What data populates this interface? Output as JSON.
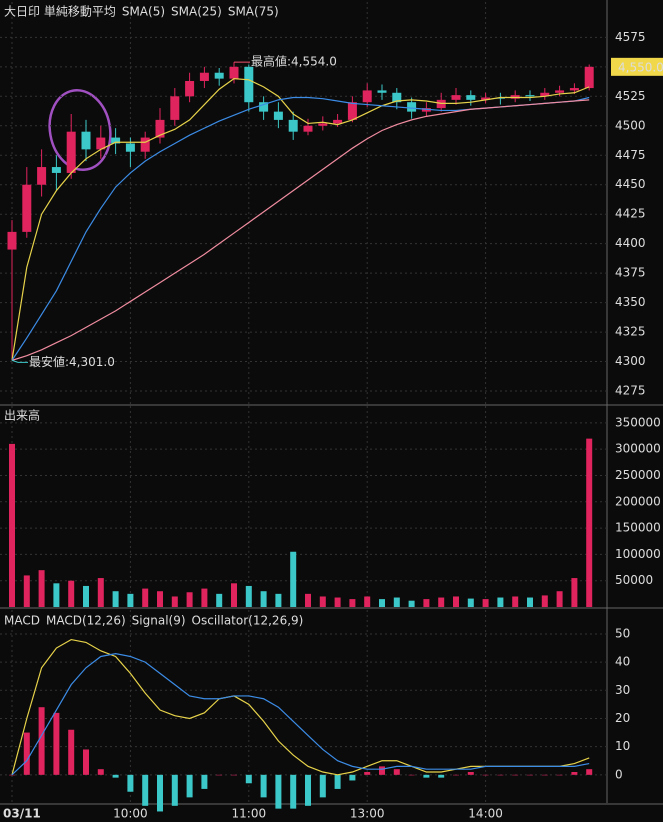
{
  "chart_data": [
    {
      "type": "candlestick",
      "title": "大日印 単純移動平均",
      "grid": true,
      "categories": [
        "03/11",
        null,
        null,
        null,
        null,
        null,
        null,
        null,
        "10:00",
        null,
        null,
        null,
        null,
        null,
        null,
        null,
        "11:00",
        null,
        null,
        null,
        null,
        null,
        null,
        null,
        "13:00",
        null,
        null,
        null,
        null,
        null,
        null,
        null,
        "14:00",
        null,
        null,
        null,
        null,
        null,
        null,
        null
      ],
      "open": [
        4395,
        4410,
        4450,
        4465,
        4460,
        4495,
        4480,
        4490,
        4485,
        4478,
        4490,
        4505,
        4525,
        4538,
        4545,
        4540,
        4550,
        4520,
        4512,
        4505,
        4495,
        4500,
        4502,
        4505,
        4520,
        4530,
        4528,
        4520,
        4512,
        4515,
        4522,
        4526,
        4522,
        4524,
        4523,
        4526,
        4525,
        4528,
        4530,
        4532
      ],
      "high": [
        4420,
        4465,
        4480,
        4475,
        4510,
        4505,
        4500,
        4498,
        4490,
        4495,
        4515,
        4532,
        4545,
        4550,
        4549,
        4554,
        4552,
        4525,
        4520,
        4512,
        4506,
        4508,
        4510,
        4525,
        4536,
        4535,
        4532,
        4524,
        4520,
        4528,
        4532,
        4530,
        4528,
        4528,
        4530,
        4530,
        4532,
        4534,
        4536,
        4552
      ],
      "low": [
        4301,
        4405,
        4440,
        4445,
        4455,
        4470,
        4472,
        4476,
        4465,
        4472,
        4485,
        4500,
        4520,
        4532,
        4534,
        4536,
        4512,
        4505,
        4498,
        4488,
        4492,
        4496,
        4499,
        4503,
        4516,
        4522,
        4514,
        4506,
        4508,
        4512,
        4518,
        4517,
        4519,
        4518,
        4520,
        4521,
        4522,
        4525,
        4527,
        4530
      ],
      "close": [
        4410,
        4450,
        4465,
        4460,
        4495,
        4480,
        4490,
        4485,
        4478,
        4490,
        4505,
        4525,
        4538,
        4545,
        4540,
        4550,
        4520,
        4512,
        4505,
        4495,
        4500,
        4502,
        4505,
        4520,
        4530,
        4528,
        4520,
        4512,
        4515,
        4522,
        4526,
        4522,
        4524,
        4523,
        4526,
        4525,
        4528,
        4530,
        4532,
        4550
      ],
      "up_color": "#e0245e",
      "down_color": "#3cc8c8",
      "series": [
        {
          "name": "SMA(5)",
          "color": "#e6d24a",
          "values": [
            4301,
            4380,
            4425,
            4445,
            4460,
            4472,
            4480,
            4486,
            4486,
            4486,
            4492,
            4497,
            4505,
            4518,
            4531,
            4540,
            4539,
            4533,
            4525,
            4510,
            4502,
            4503,
            4501,
            4505,
            4511,
            4517,
            4521,
            4522,
            4521,
            4519,
            4519,
            4520,
            4522,
            4524,
            4524,
            4524,
            4525,
            4527,
            4528,
            4533
          ]
        },
        {
          "name": "SMA(25)",
          "color": "#3c8ce6",
          "values": [
            4301,
            4320,
            4340,
            4360,
            4385,
            4410,
            4430,
            4448,
            4460,
            4470,
            4478,
            4485,
            4492,
            4498,
            4504,
            4509,
            4514,
            4518,
            4522,
            4524,
            4524,
            4523,
            4521,
            4519,
            4518,
            4517,
            4516,
            4515,
            4514,
            4513,
            4513,
            4514,
            4515,
            4516,
            4517,
            4518,
            4519,
            4520,
            4521,
            4524
          ]
        },
        {
          "name": "SMA(75)",
          "color": "#f08ca0",
          "values": [
            4301,
            4305,
            4310,
            4316,
            4322,
            4329,
            4336,
            4343,
            4351,
            4359,
            4367,
            4375,
            4383,
            4391,
            4400,
            4409,
            4418,
            4427,
            4436,
            4445,
            4454,
            4463,
            4472,
            4481,
            4489,
            4496,
            4501,
            4505,
            4508,
            4510,
            4512,
            4514,
            4515,
            4516,
            4517,
            4518,
            4519,
            4520,
            4521,
            4522
          ]
        }
      ],
      "ylim": [
        4264,
        4605
      ],
      "yticks": [
        4275,
        4300,
        4325,
        4350,
        4375,
        4400,
        4425,
        4450,
        4475,
        4500,
        4525,
        4550,
        4575
      ],
      "annotations": [
        {
          "text": "最高値:4,554.0",
          "value": 4554,
          "color": "#f0506e"
        },
        {
          "text": "最安値:4,301.0",
          "value": 4301,
          "color": "#3cc8c8"
        }
      ],
      "last_price": {
        "value": 4550,
        "label": "4,550.0",
        "color": "#f0d84a"
      }
    },
    {
      "type": "bar",
      "title": "出来高",
      "grid": true,
      "values": [
        310000,
        60000,
        70000,
        45000,
        50000,
        40000,
        55000,
        30000,
        25000,
        35000,
        30000,
        20000,
        28000,
        35000,
        25000,
        45000,
        40000,
        30000,
        25000,
        105000,
        25000,
        20000,
        18000,
        15000,
        20000,
        15000,
        18000,
        12000,
        15000,
        18000,
        20000,
        16000,
        15000,
        18000,
        20000,
        18000,
        22000,
        30000,
        55000,
        320000
      ],
      "ylim": [
        0,
        382000
      ],
      "yticks": [
        50000,
        100000,
        150000,
        200000,
        250000,
        300000,
        350000
      ]
    },
    {
      "type": "macd",
      "title": "MACD",
      "grid": true,
      "series": [
        {
          "name": "MACD(12,26)",
          "color": "#e6d24a",
          "values": [
            0,
            20,
            38,
            45,
            48,
            47,
            44,
            42,
            36,
            29,
            23,
            21,
            20,
            22,
            27,
            28,
            25,
            19,
            12,
            7,
            3,
            1,
            0,
            1,
            3,
            5,
            5,
            3,
            1,
            1,
            2,
            3,
            3,
            3,
            3,
            3,
            3,
            3,
            4,
            6
          ]
        },
        {
          "name": "Signal(9)",
          "color": "#3c8ce6",
          "values": [
            0,
            5,
            14,
            23,
            32,
            38,
            42,
            43,
            42,
            40,
            36,
            32,
            28,
            27,
            27,
            28,
            28,
            27,
            24,
            19,
            14,
            9,
            5,
            3,
            2,
            2,
            3,
            3,
            2,
            2,
            2,
            2,
            3,
            3,
            3,
            3,
            3,
            3,
            3,
            4
          ]
        },
        {
          "name": "Oscillator(12,26,9)",
          "color": "#e0245e",
          "negative_color": "#3cc8c8",
          "values": [
            0,
            15,
            24,
            22,
            16,
            9,
            2,
            -1,
            -6,
            -11,
            -13,
            -11,
            -8,
            -5,
            0,
            0,
            -3,
            -8,
            -12,
            -12,
            -11,
            -8,
            -5,
            -2,
            1,
            3,
            2,
            0,
            -1,
            -1,
            0,
            1,
            0,
            0,
            0,
            0,
            0,
            0,
            1,
            2
          ]
        }
      ],
      "ylim": [
        -10,
        58.5
      ],
      "yticks": [
        0,
        10,
        20,
        30,
        40,
        50
      ]
    }
  ]
}
